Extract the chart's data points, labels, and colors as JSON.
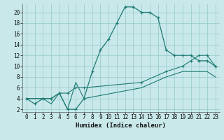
{
  "xlabel": "Humidex (Indice chaleur)",
  "bg_color": "#c8e8ea",
  "grid_color": "#9ecdd0",
  "line_color": "#1e7b72",
  "xlim": [
    -0.5,
    23.5
  ],
  "ylim": [
    1.5,
    21.5
  ],
  "yticks": [
    2,
    4,
    6,
    8,
    10,
    12,
    14,
    16,
    18,
    20
  ],
  "xticks": [
    0,
    1,
    2,
    3,
    4,
    5,
    6,
    7,
    8,
    9,
    10,
    11,
    12,
    13,
    14,
    15,
    16,
    17,
    18,
    19,
    20,
    21,
    22,
    23
  ],
  "curve1_x": [
    0,
    1,
    2,
    3,
    4,
    5,
    6,
    7,
    8,
    9,
    10,
    11,
    12,
    13,
    14,
    15,
    16,
    17,
    18,
    19,
    20,
    21,
    22,
    23
  ],
  "curve1_y": [
    4,
    3,
    4,
    4,
    5,
    2,
    2,
    4,
    9,
    13,
    15,
    18,
    21,
    21,
    20,
    20,
    19,
    13,
    12,
    12,
    12,
    11,
    11,
    10
  ],
  "curve2_x": [
    0,
    2,
    3,
    4,
    5,
    6,
    7,
    14,
    17,
    19,
    20,
    21,
    22,
    23
  ],
  "curve2_y": [
    4,
    4,
    4,
    5,
    5,
    6,
    6,
    7,
    9,
    10,
    11,
    12,
    12,
    10
  ],
  "curve3_x": [
    0,
    2,
    3,
    4,
    5,
    6,
    7,
    14,
    17,
    19,
    20,
    21,
    22,
    23
  ],
  "curve3_y": [
    4,
    4,
    3,
    5,
    2,
    7,
    4,
    6,
    8,
    9,
    9,
    9,
    9,
    8
  ]
}
